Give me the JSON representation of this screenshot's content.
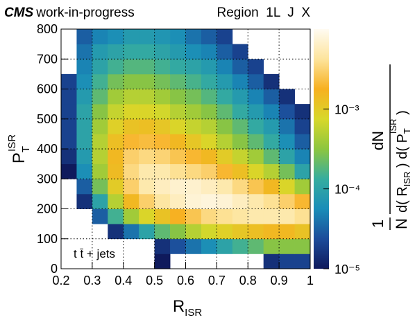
{
  "chart_data": {
    "type": "heatmap",
    "header": {
      "experiment": "CMS",
      "status": "work-in-progress",
      "region": "Region  1L  J  X"
    },
    "annotation": "t t̄ + jets",
    "xlabel": {
      "main": "R",
      "sub": "ISR"
    },
    "ylabel": {
      "main": "P",
      "sub": "T",
      "sup": "ISR"
    },
    "zlabel": {
      "pre_num": "1",
      "pre_den": "N",
      "num": "dN",
      "den": [
        "d( R",
        "ISR",
        " ) d( P",
        "T",
        "ISR",
        " )"
      ]
    },
    "xlim": [
      0.2,
      1
    ],
    "xticks": [
      0.2,
      0.3,
      0.4,
      0.5,
      0.6,
      0.7,
      0.8,
      0.9,
      1
    ],
    "ylim": [
      0,
      800
    ],
    "yticks": [
      0,
      100,
      200,
      300,
      400,
      500,
      600,
      700,
      800
    ],
    "zlim": [
      1e-05,
      0.01
    ],
    "zlog": true,
    "zticks": [
      {
        "value": 1e-05,
        "label": "10⁻⁵"
      },
      {
        "value": 0.0001,
        "label": "10⁻⁴"
      },
      {
        "value": 0.001,
        "label": "10⁻³"
      }
    ],
    "grid": true,
    "colors": [
      "#0f1a5c",
      "#1c4c9a",
      "#1a8db8",
      "#36ad9f",
      "#8dc63f",
      "#d8d82a",
      "#f7b020",
      "#fde49c",
      "#fffbf2"
    ],
    "xbins": [
      0.2,
      0.25,
      0.3,
      0.35,
      0.4,
      0.45,
      0.5,
      0.55,
      0.6,
      0.65,
      0.7,
      0.75,
      0.8,
      0.85,
      0.9,
      0.95,
      1
    ],
    "ybins": [
      0,
      50,
      100,
      150,
      200,
      250,
      300,
      350,
      400,
      450,
      500,
      550,
      600,
      650,
      700,
      750,
      800
    ],
    "z": [
      [
        null,
        null,
        null,
        null,
        null,
        null,
        1e-05,
        null,
        null,
        null,
        null,
        null,
        null,
        1.5e-05,
        2e-05,
        2e-05
      ],
      [
        null,
        null,
        null,
        null,
        null,
        null,
        1.5e-05,
        2.5e-05,
        4e-05,
        6e-05,
        0.0001,
        0.00015,
        0.0002,
        0.0003,
        0.0003,
        0.0003
      ],
      [
        null,
        null,
        null,
        1.5e-05,
        4e-05,
        0.0001,
        0.0002,
        0.0003,
        0.0005,
        0.0007,
        0.0009,
        0.0011,
        0.0013,
        0.0015,
        0.0015,
        0.0012
      ],
      [
        null,
        null,
        3e-05,
        0.00015,
        0.0004,
        0.0008,
        0.0012,
        0.0018,
        0.0025,
        0.0035,
        0.004,
        0.0045,
        0.005,
        0.005,
        0.005,
        0.004
      ],
      [
        null,
        1.5e-05,
        0.0001,
        0.0005,
        0.0015,
        0.003,
        0.0045,
        0.006,
        0.0075,
        0.008,
        0.0075,
        0.006,
        0.005,
        0.004,
        0.003,
        0.002
      ],
      [
        null,
        3e-05,
        0.00025,
        0.001,
        0.003,
        0.005,
        0.006,
        0.007,
        0.007,
        0.006,
        0.005,
        0.0035,
        0.0025,
        0.0015,
        0.0008,
        0.0004
      ],
      [
        1e-05,
        6e-05,
        0.0004,
        0.0014,
        0.0035,
        0.005,
        0.005,
        0.004,
        0.0035,
        0.003,
        0.002,
        0.0013,
        0.0008,
        0.0005,
        0.00025,
        0.0001
      ],
      [
        1.5e-05,
        8e-05,
        0.0005,
        0.0015,
        0.003,
        0.0035,
        0.0032,
        0.0025,
        0.002,
        0.0015,
        0.001,
        0.0006,
        0.0004,
        0.0002,
        0.0001,
        5e-05
      ],
      [
        2e-05,
        0.0001,
        0.0005,
        0.0013,
        0.002,
        0.0022,
        0.002,
        0.0015,
        0.0011,
        0.0008,
        0.0005,
        0.0003,
        0.0002,
        0.00012,
        6e-05,
        3e-05
      ],
      [
        2e-05,
        0.0001,
        0.0004,
        0.0009,
        0.0012,
        0.0013,
        0.0011,
        0.0008,
        0.0006,
        0.0005,
        0.0003,
        0.0002,
        0.00012,
        8e-05,
        4e-05,
        2e-05
      ],
      [
        2e-05,
        0.0001,
        0.0003,
        0.0006,
        0.0008,
        0.0008,
        0.0007,
        0.0005,
        0.0004,
        0.0003,
        0.0002,
        0.00012,
        8e-05,
        5e-05,
        2.5e-05,
        1.5e-05
      ],
      [
        2e-05,
        8e-05,
        0.0002,
        0.0004,
        0.0005,
        0.0005,
        0.0004,
        0.0003,
        0.00025,
        0.00018,
        0.00012,
        8e-05,
        5e-05,
        3e-05,
        1.5e-05,
        null
      ],
      [
        2e-05,
        6e-05,
        0.00015,
        0.00025,
        0.0003,
        0.0003,
        0.00025,
        0.0002,
        0.00016,
        0.00012,
        8e-05,
        5e-05,
        3e-05,
        1.5e-05,
        null,
        null
      ],
      [
        null,
        5e-05,
        0.0001,
        0.00015,
        0.00018,
        0.00018,
        0.00015,
        0.00012,
        0.0001,
        8e-05,
        5e-05,
        3e-05,
        2e-05,
        null,
        null,
        null
      ],
      [
        null,
        4e-05,
        8e-05,
        0.0001,
        0.00012,
        0.00012,
        0.0001,
        8e-05,
        6e-05,
        5e-05,
        3e-05,
        2e-05,
        null,
        null,
        null,
        null
      ],
      [
        null,
        3e-05,
        5e-05,
        6e-05,
        8e-05,
        8e-05,
        7e-05,
        6e-05,
        4e-05,
        3e-05,
        2e-05,
        null,
        null,
        null,
        null,
        null
      ]
    ]
  }
}
